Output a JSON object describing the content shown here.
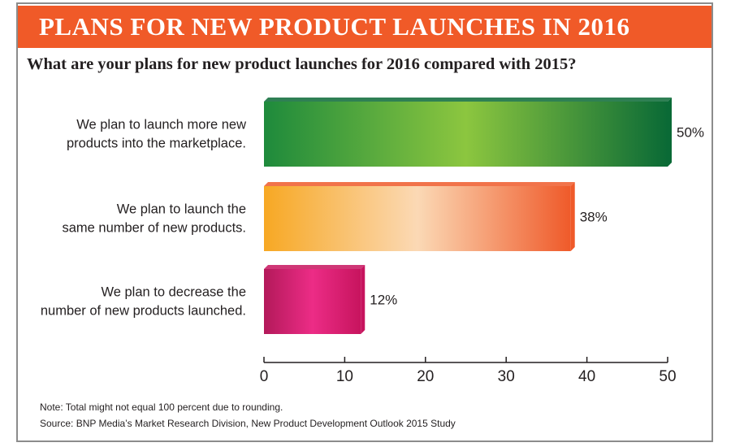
{
  "header": {
    "title": "PLANS FOR NEW PRODUCT LAUNCHES IN 2016",
    "question": "What are your plans for new product launches for 2016 compared with 2015?"
  },
  "chart_data": {
    "type": "bar",
    "orientation": "horizontal",
    "title": "PLANS FOR NEW PRODUCT LAUNCHES IN 2016",
    "subtitle": "What are your plans for new product launches for 2016 compared with 2015?",
    "categories": [
      [
        "We plan to launch more new",
        "products into the marketplace."
      ],
      [
        "We plan to launch the",
        "same number of new products."
      ],
      [
        "We plan to decrease the",
        "number of new products launched."
      ]
    ],
    "values": [
      50,
      38,
      12
    ],
    "value_labels": [
      "50%",
      "38%",
      "12%"
    ],
    "bar_colors": [
      {
        "start": "#1e8a3c",
        "mid": "#8cc63f",
        "end": "#0a6a36"
      },
      {
        "start": "#f7a823",
        "mid": "#fbd9b5",
        "end": "#ef5a2a"
      },
      {
        "start": "#b3195a",
        "mid": "#ec2c86",
        "end": "#c7145e"
      }
    ],
    "xlim": [
      0,
      50
    ],
    "xticks": [
      0,
      10,
      20,
      30,
      40,
      50
    ],
    "xlabel": "",
    "ylabel": "",
    "grid": false
  },
  "footer": {
    "note": "Note: Total might not equal 100 percent due to rounding.",
    "source": "Source: BNP Media’s Market Research Division, New Product Development Outlook 2015 Study"
  },
  "colors": {
    "banner": "#f05a28",
    "frame": "#8c8c8c",
    "text": "#231f20"
  }
}
